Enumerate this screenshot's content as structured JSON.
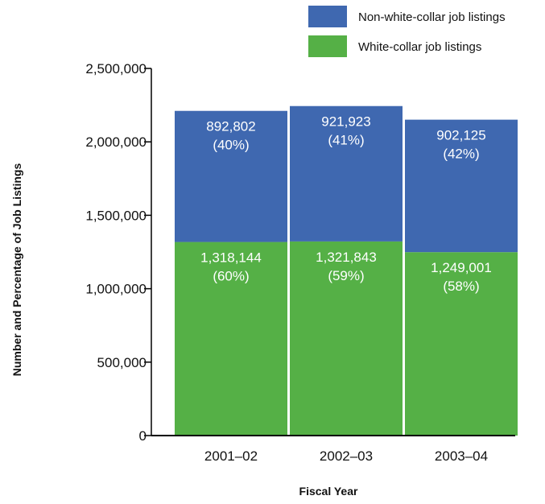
{
  "chart_data": {
    "type": "bar",
    "stacked": true,
    "categories": [
      "2001–02",
      "2002–03",
      "2003–04"
    ],
    "series": [
      {
        "name": "White-collar job listings",
        "color": "#55b046",
        "values": [
          1318144,
          1321843,
          1249001
        ],
        "labels": [
          "1,318,144",
          "1,321,843",
          "1,249,001"
        ],
        "percent_labels": [
          "(60%)",
          "(59%)",
          "(58%)"
        ]
      },
      {
        "name": "Non-white-collar job listings",
        "color": "#3f68b0",
        "values": [
          892802,
          921923,
          902125
        ],
        "labels": [
          "892,802",
          "921,923",
          "902,125"
        ],
        "percent_labels": [
          "(40%)",
          "(41%)",
          "(42%)"
        ]
      }
    ],
    "y_ticks": [
      0,
      500000,
      1000000,
      1500000,
      2000000,
      2500000
    ],
    "y_tick_labels": [
      "0",
      "500,000",
      "1,000,000",
      "1,500,000",
      "2,000,000",
      "2,500,000"
    ],
    "ylim": [
      0,
      2500000
    ],
    "xlabel": "Fiscal Year",
    "ylabel": "Number and Percentage of Job Listings",
    "legend_position": "top-right",
    "grid": false
  }
}
